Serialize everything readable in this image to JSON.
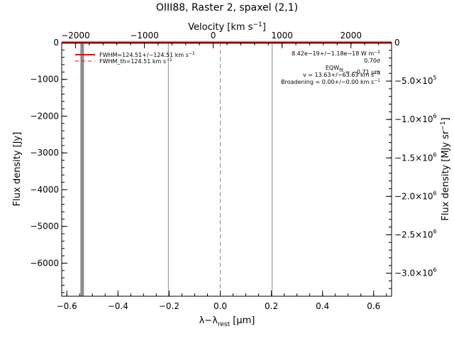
{
  "chart_data": {
    "type": "line",
    "title": "OIII88, Raster 2, spaxel (2,1)",
    "xlabel_bottom": {
      "main": "λ−λ",
      "sub": "rest",
      "unit": " [μm]"
    },
    "xlabel_top": {
      "main": "Velocity [km s",
      "sup": "−1",
      "end": "]"
    },
    "ylabel_left": "Flux density [Jy]",
    "ylabel_right": {
      "main": "Flux density [MJy sr",
      "sup": "−1",
      "end": "]"
    },
    "xlim": [
      -0.62,
      0.67
    ],
    "ylim": [
      -6900,
      0
    ],
    "vlim": [
      -2200,
      2590
    ],
    "right_lim": [
      -3300000,
      0
    ],
    "x_ticks": [
      {
        "value": -0.6,
        "label": "−0.6"
      },
      {
        "value": -0.4,
        "label": "−0.4"
      },
      {
        "value": -0.2,
        "label": "−0.2"
      },
      {
        "value": 0.0,
        "label": "0.0"
      },
      {
        "value": 0.2,
        "label": "0.2"
      },
      {
        "value": 0.4,
        "label": "0.4"
      },
      {
        "value": 0.6,
        "label": "0.6"
      }
    ],
    "y_ticks": [
      {
        "value": 0,
        "label": "0"
      },
      {
        "value": -1000,
        "label": "−1000"
      },
      {
        "value": -2000,
        "label": "−2000"
      },
      {
        "value": -3000,
        "label": "−3000"
      },
      {
        "value": -4000,
        "label": "−4000"
      },
      {
        "value": -5000,
        "label": "−5000"
      },
      {
        "value": -6000,
        "label": "−6000"
      }
    ],
    "v_ticks": [
      {
        "value": -2000,
        "label": "−2000"
      },
      {
        "value": -1000,
        "label": "−1000"
      },
      {
        "value": 0,
        "label": "0"
      },
      {
        "value": 1000,
        "label": "1000"
      },
      {
        "value": 2000,
        "label": "2000"
      }
    ],
    "right_ticks": [
      {
        "value": 0,
        "mant": "0",
        "exp": ""
      },
      {
        "value": -500000,
        "mant": "−5.0×10",
        "exp": "5"
      },
      {
        "value": -1000000,
        "mant": "−1.0×10",
        "exp": "6"
      },
      {
        "value": -1500000,
        "mant": "−1.5×10",
        "exp": "6"
      },
      {
        "value": -2000000,
        "mant": "−2.0×10",
        "exp": "6"
      },
      {
        "value": -2500000,
        "mant": "−2.5×10",
        "exp": "6"
      },
      {
        "value": -3000000,
        "mant": "−3.0×10",
        "exp": "6"
      }
    ],
    "series": [
      {
        "name": "flux",
        "color": "#ff0000",
        "x": [
          -0.62,
          0.67
        ],
        "y": [
          0,
          0
        ]
      }
    ],
    "vertical_lines": [
      {
        "x": -0.54,
        "style": "band",
        "color": "#8c8c8c"
      },
      {
        "x": -0.203,
        "style": "solid",
        "color": "#8c8c8c"
      },
      {
        "x": 0.0,
        "style": "dashed",
        "color": "#8c8c8c"
      },
      {
        "x": 0.203,
        "style": "solid",
        "color": "#8c8c8c"
      }
    ],
    "legend": {
      "placement": "top-left",
      "entries": [
        {
          "text": "FWHM=124.51+/−124.51 km s",
          "sup": "−1",
          "style": "solid",
          "color": "#ff0000"
        },
        {
          "text": "FWHM_th=124.51 km s",
          "sup": "−1",
          "style": "dashed",
          "color": "#ff0000"
        }
      ]
    },
    "annotations": [
      {
        "text": "8.42e−19+/−1.18e−18 W m",
        "sup": "−2",
        "sub": "",
        "end": ""
      },
      {
        "text": "0.70σ",
        "sup": "",
        "sub": "",
        "end": ""
      },
      {
        "text": "EQW",
        "sup": "",
        "sub": "fit",
        "end": " = −0.71 μm"
      },
      {
        "text": "v = 13.63+/−63.63 km s",
        "sup": "−1",
        "sub": "",
        "end": ""
      },
      {
        "text": "Broadening = 0.00+/−0.00 km s",
        "sup": "−1",
        "sub": "",
        "end": ""
      }
    ],
    "colors": {
      "line": "#ff0000",
      "markers": "#8c8c8c",
      "axes": "#000000"
    }
  }
}
